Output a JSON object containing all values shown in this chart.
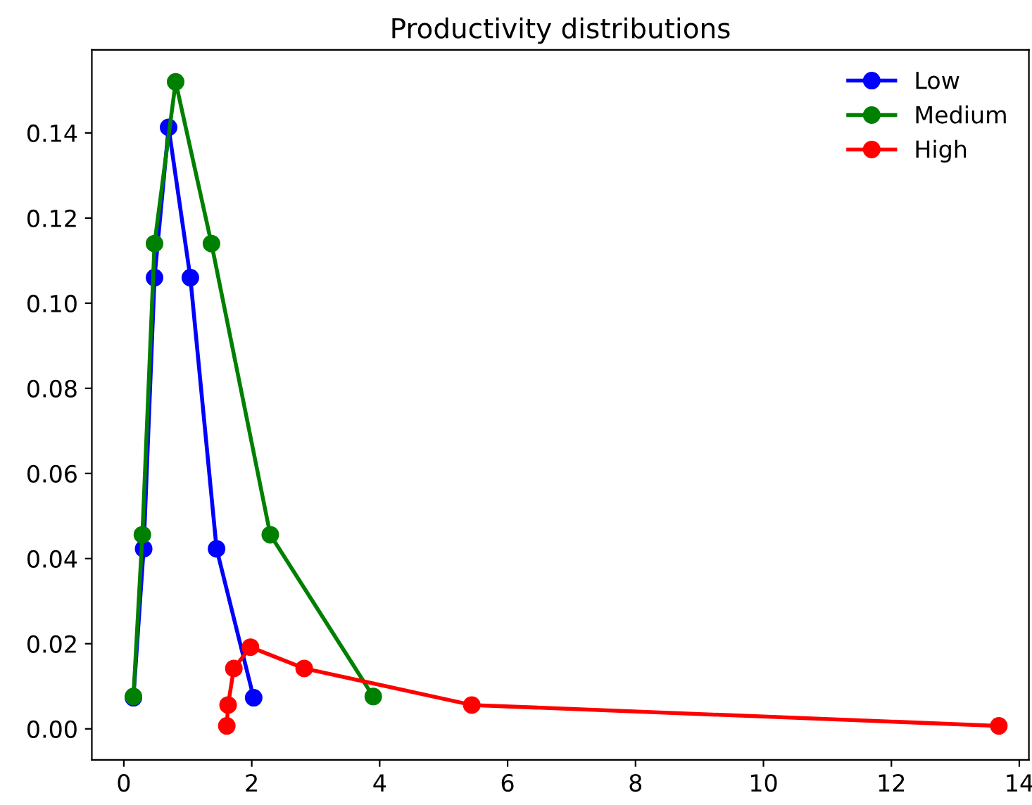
{
  "chart_data": {
    "type": "line",
    "title": "Productivity distributions",
    "marker": "circle",
    "grid": false,
    "legend": "top right",
    "xlim": [
      -0.5,
      14.15
    ],
    "xticks": [
      0,
      2,
      4,
      6,
      8,
      10,
      12,
      14
    ],
    "ylim": [
      -0.0073,
      0.1595
    ],
    "yticks": [
      {
        "value": 0,
        "label": "0.00"
      },
      {
        "value": 0.02,
        "label": "0.02"
      },
      {
        "value": 0.04,
        "label": "0.04"
      },
      {
        "value": 0.06,
        "label": "0.06"
      },
      {
        "value": 0.08,
        "label": "0.08"
      },
      {
        "value": 0.1,
        "label": "0.10"
      },
      {
        "value": 0.12,
        "label": "0.12"
      },
      {
        "value": 0.14,
        "label": "0.14"
      }
    ],
    "series": [
      {
        "name": "Low",
        "color": "#0000ff",
        "x": [
          0.15,
          0.31,
          0.48,
          0.7,
          1.04,
          1.45,
          2.03
        ],
        "values": [
          0.0073,
          0.0423,
          0.106,
          0.1413,
          0.106,
          0.0423,
          0.0073
        ]
      },
      {
        "name": "Medium",
        "color": "#008000",
        "x": [
          0.15,
          0.29,
          0.48,
          0.81,
          1.37,
          2.29,
          3.9
        ],
        "values": [
          0.0076,
          0.0456,
          0.114,
          0.152,
          0.114,
          0.0456,
          0.0076
        ]
      },
      {
        "name": "High",
        "color": "#ff0000",
        "x": [
          1.61,
          1.63,
          1.72,
          1.98,
          2.82,
          5.44,
          13.68
        ],
        "values": [
          0.0007,
          0.0056,
          0.0142,
          0.0192,
          0.0142,
          0.0056,
          0.0007
        ]
      }
    ]
  }
}
